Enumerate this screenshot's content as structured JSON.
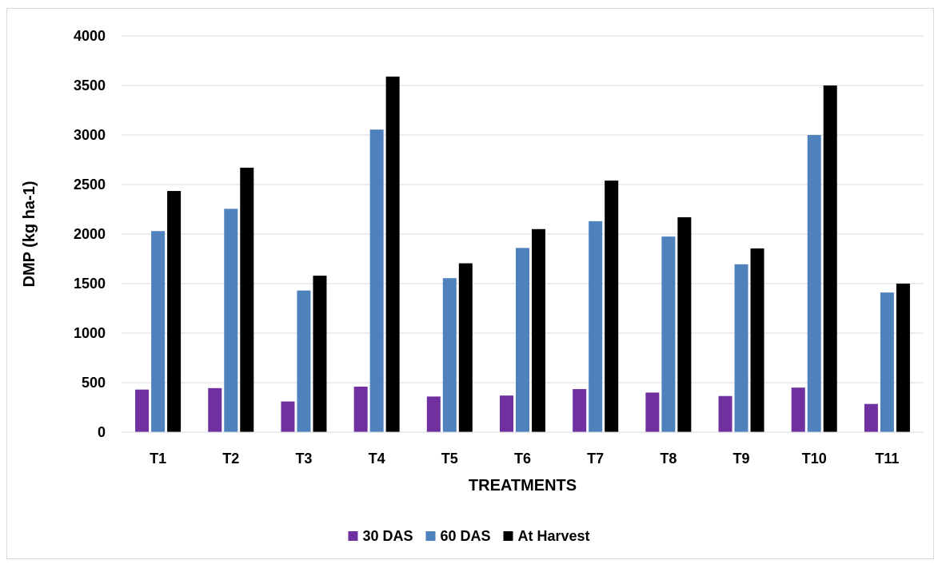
{
  "chart_data": {
    "type": "bar",
    "title": "",
    "xlabel": "TREATMENTS",
    "ylabel": "DMP (kg ha-1)",
    "ylim": [
      0,
      4000
    ],
    "yticks": [
      0,
      500,
      1000,
      1500,
      2000,
      2500,
      3000,
      3500,
      4000
    ],
    "grid": true,
    "legend_position": "bottom",
    "categories": [
      "T1",
      "T2",
      "T3",
      "T4",
      "T5",
      "T6",
      "T7",
      "T8",
      "T9",
      "T10",
      "T11"
    ],
    "series": [
      {
        "name": "30 DAS",
        "color": "#7030a0",
        "values": [
          430,
          445,
          310,
          460,
          360,
          370,
          435,
          400,
          365,
          450,
          285
        ]
      },
      {
        "name": "60 DAS",
        "color": "#4f81bd",
        "values": [
          2030,
          2255,
          1430,
          3055,
          1555,
          1860,
          2130,
          1975,
          1695,
          3000,
          1410
        ]
      },
      {
        "name": "At Harvest",
        "color": "#000000",
        "values": [
          2435,
          2670,
          1580,
          3590,
          1705,
          2050,
          2540,
          2170,
          1855,
          3500,
          1500
        ]
      }
    ]
  }
}
